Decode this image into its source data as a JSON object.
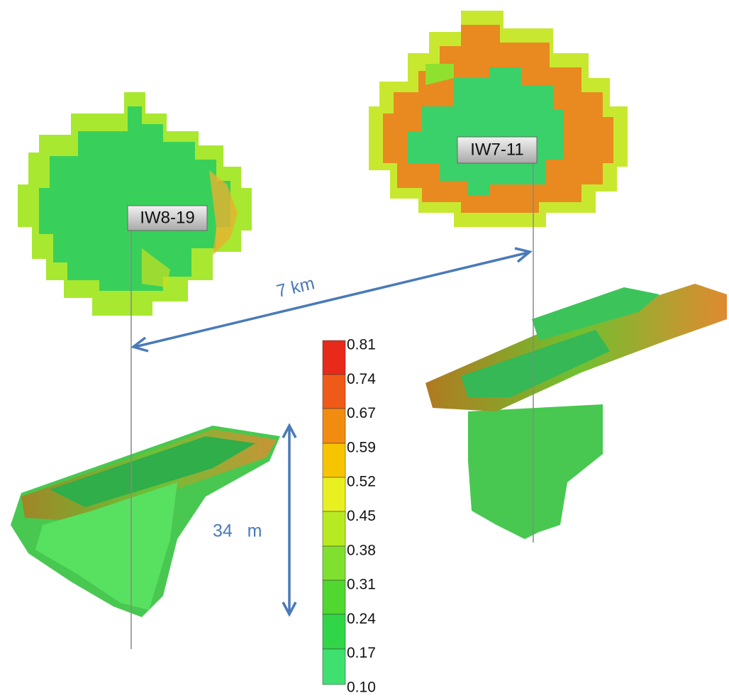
{
  "wells": [
    {
      "label": "IW8-19"
    },
    {
      "label": "IW7-11"
    }
  ],
  "distance_label": "7 km",
  "thickness_label": "34   m",
  "colorbar": {
    "ticks": [
      "0.81",
      "0.74",
      "0.67",
      "0.59",
      "0.52",
      "0.45",
      "0.38",
      "0.31",
      "0.24",
      "0.17",
      "0.10"
    ]
  }
}
